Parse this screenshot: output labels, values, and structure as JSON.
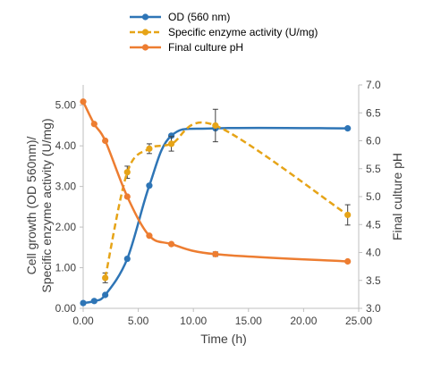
{
  "chart_data": {
    "type": "line",
    "xlabel": "Time (h)",
    "ylabel_left": [
      "Cell growth (OD 560nm)/",
      "Specific enzyme activity (U/mg)"
    ],
    "ylabel_right": "Final culture pH",
    "xlim": [
      0,
      25
    ],
    "ylim_left": [
      0,
      5.5
    ],
    "ylim_right": [
      3.0,
      7.0
    ],
    "x_ticks": [
      "0.00",
      "5.00",
      "10.00",
      "15.00",
      "20.00",
      "25.00"
    ],
    "y_left_ticks": [
      "0.00",
      "1.00",
      "2.00",
      "3.00",
      "4.00",
      "5.00"
    ],
    "y_right_ticks": [
      "3.0",
      "3.5",
      "4.0",
      "4.5",
      "5.0",
      "5.5",
      "6.0",
      "6.5",
      "7.0"
    ],
    "legend_position": "top",
    "grid": false,
    "series": [
      {
        "name": "OD (560 nm)",
        "axis": "left",
        "color": "#2e75b6",
        "style": "solid",
        "x": [
          0,
          1,
          2,
          4,
          6,
          8,
          12,
          24
        ],
        "y": [
          0.13,
          0.18,
          0.33,
          1.22,
          3.02,
          4.25,
          4.43,
          4.43
        ]
      },
      {
        "name": "Specific enzyme activity (U/mg)",
        "axis": "left",
        "color": "#e6a418",
        "style": "dashed",
        "x": [
          2,
          4,
          6,
          8,
          12,
          24
        ],
        "y": [
          0.75,
          3.35,
          3.93,
          4.05,
          4.5,
          2.3
        ],
        "error": [
          0.12,
          0.15,
          0.12,
          0.18,
          0.4,
          0.25
        ]
      },
      {
        "name": "Final culture pH",
        "axis": "right",
        "color": "#ed7d31",
        "style": "solid",
        "x": [
          0,
          1,
          2,
          4,
          6,
          8,
          12,
          24
        ],
        "y": [
          6.7,
          6.3,
          6.0,
          5.0,
          4.3,
          4.15,
          3.97,
          3.84
        ],
        "error": [
          0,
          0,
          0,
          0,
          0,
          0,
          0.04,
          0
        ]
      }
    ]
  }
}
